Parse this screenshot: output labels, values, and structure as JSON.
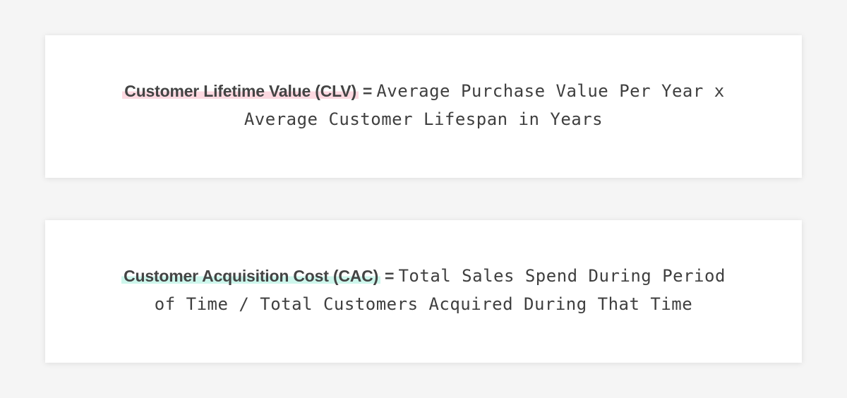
{
  "formulas": {
    "clv": {
      "term": "Customer Lifetime Value (CLV)",
      "operator": "=",
      "expression": "Average Purchase Value Per Year x Average Customer Lifespan in Years",
      "highlight_color": "#fdd9e1"
    },
    "cac": {
      "term": "Customer Acquisition Cost (CAC)",
      "operator": "=",
      "expression": "Total Sales Spend During Period of Time / Total Customers Acquired During That Time",
      "highlight_color": "#cdf6ec"
    }
  },
  "colors": {
    "background": "#f5f5f5",
    "card": "#ffffff",
    "text": "#3f3f3f"
  }
}
